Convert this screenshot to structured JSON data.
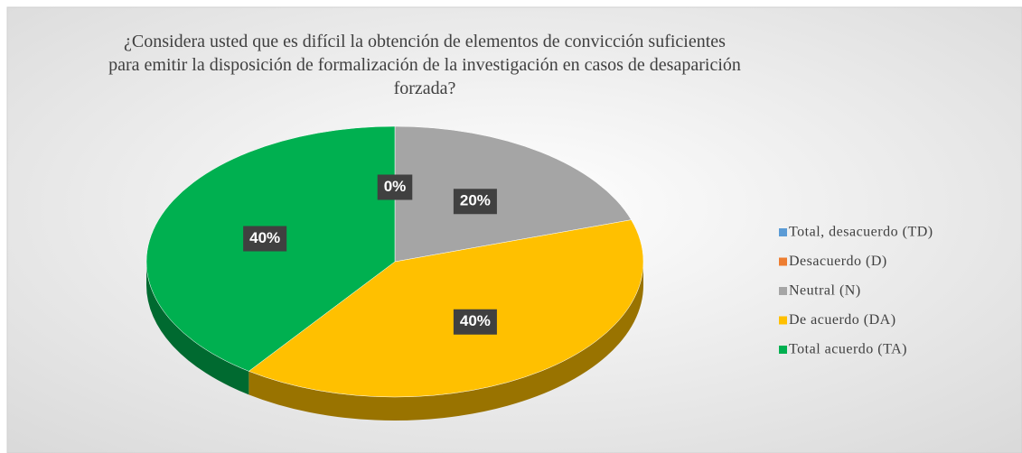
{
  "chart_data": {
    "type": "pie",
    "title": "¿Considera usted que es difícil la obtención de elementos de convicción suficientes para emitir la disposición de formalización de la investigación en casos de desaparición forzada?",
    "categories": [
      "Total, desacuerdo (TD)",
      "Desacuerdo (D)",
      "Neutral (N)",
      "De acuerdo (DA)",
      "Total acuerdo (TA)"
    ],
    "values": [
      0,
      0,
      20,
      40,
      40
    ],
    "value_labels": [
      "0%",
      null,
      "20%",
      "40%",
      "40%"
    ],
    "colors": [
      "#5b9bd5",
      "#ed7d31",
      "#a5a5a5",
      "#ffc000",
      "#00b050"
    ],
    "legend": "right"
  }
}
